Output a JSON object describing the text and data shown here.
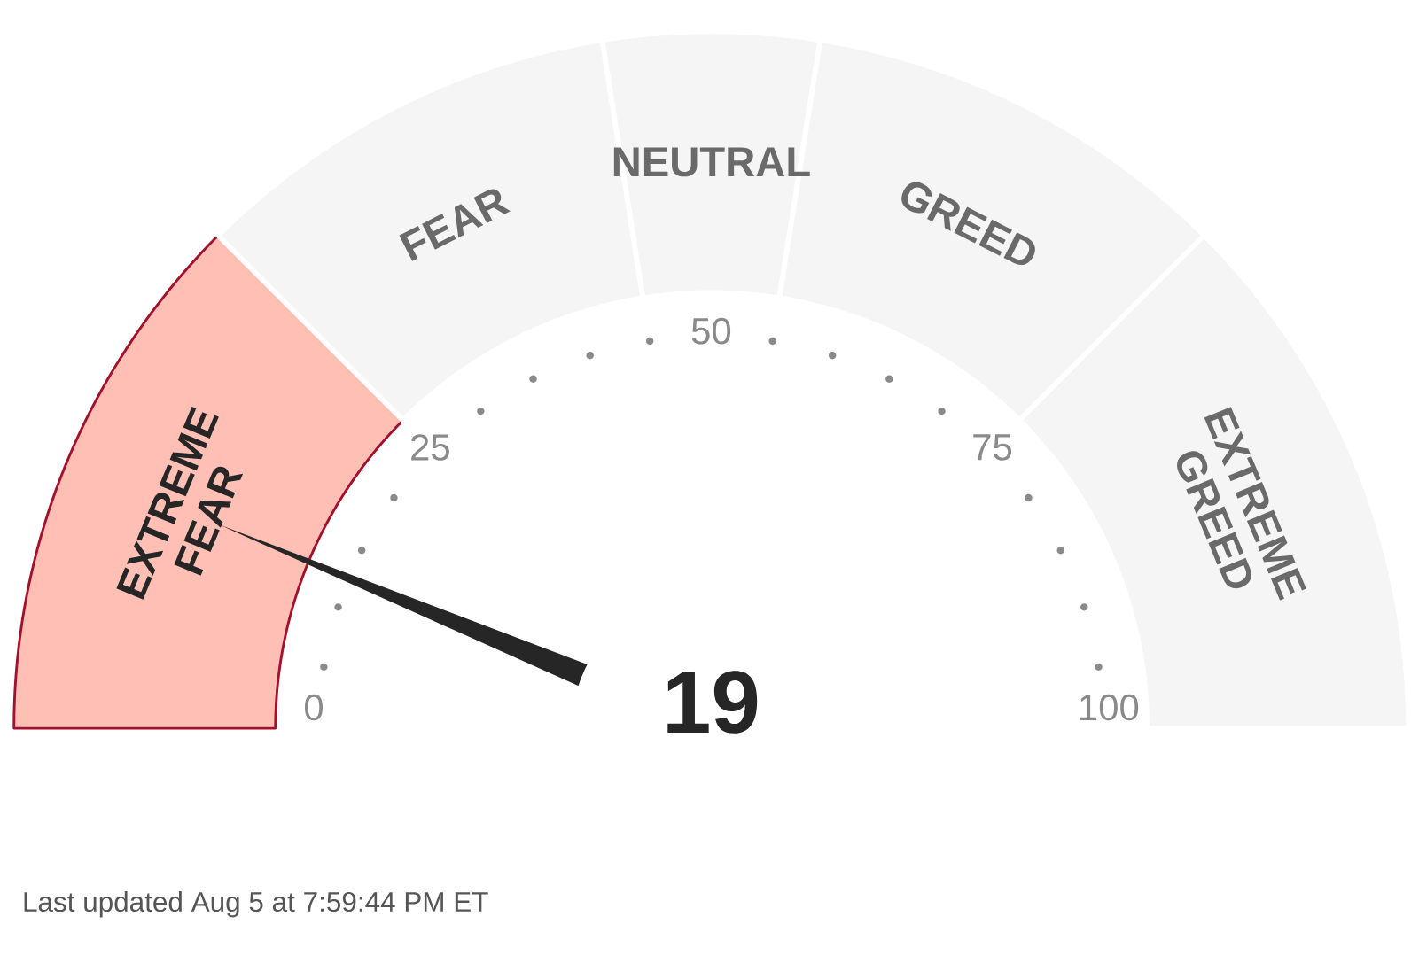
{
  "chart_data": {
    "type": "donut",
    "categories": [
      "EXTREME FEAR",
      "FEAR",
      "NEUTRAL",
      "GREED",
      "EXTREME GREED"
    ],
    "values": [
      25,
      20,
      10,
      20,
      25
    ],
    "colors": [
      "#ffbfb5",
      "#f5f5f5",
      "#f5f5f5",
      "#f5f5f5",
      "#f5f5f5"
    ],
    "needle": "EXTREME FEAR",
    "annotations": [
      "19",
      "0",
      "25",
      "50",
      "75",
      "100",
      "Last updated Aug 5 at 7:59:44 PM ET"
    ]
  }
}
